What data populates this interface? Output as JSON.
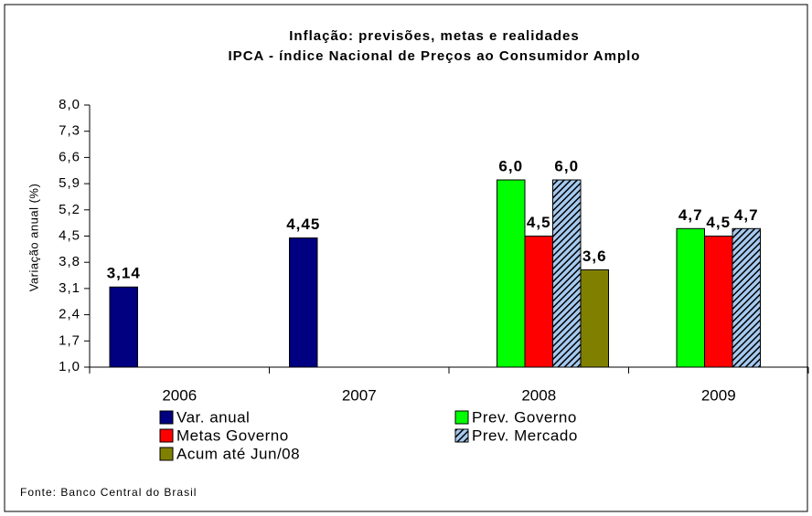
{
  "chart_data": {
    "type": "bar",
    "title": "Inflação: previsões, metas e realidades",
    "subtitle": "IPCA - índice Nacional de Preços ao Consumidor Amplo",
    "y_label": "Variação anual (%)",
    "source": "Fonte: Banco Central do Brasil",
    "categories": [
      "2006",
      "2007",
      "2008",
      "2009"
    ],
    "series": [
      {
        "name": "Var. anual",
        "color": "#000080",
        "values": [
          3.14,
          4.45,
          null,
          null
        ],
        "value_labels": [
          "3,14",
          "4,45",
          null,
          null
        ]
      },
      {
        "name": "Prev. Governo",
        "color": "#00ff00",
        "values": [
          null,
          null,
          6.0,
          4.7
        ],
        "value_labels": [
          null,
          null,
          "6,0",
          "4,7"
        ]
      },
      {
        "name": "Metas Governo",
        "color": "#ff0000",
        "values": [
          null,
          null,
          4.5,
          4.5
        ],
        "value_labels": [
          null,
          null,
          "4,5",
          "4,5"
        ]
      },
      {
        "name": "Prev. Mercado",
        "color": "#a6caf0",
        "pattern": "hatch",
        "values": [
          null,
          null,
          6.0,
          4.7
        ],
        "value_labels": [
          null,
          null,
          "6,0",
          "4,7"
        ]
      },
      {
        "name": "Acum até Jun/08",
        "color": "#808000",
        "values": [
          null,
          null,
          3.6,
          null
        ],
        "value_labels": [
          null,
          null,
          "3,6",
          null
        ]
      }
    ],
    "ylim": [
      1.0,
      8.0
    ],
    "yticks": [
      {
        "value": 1.0,
        "label": "1,0"
      },
      {
        "value": 1.7,
        "label": "1,7"
      },
      {
        "value": 2.4,
        "label": "2,4"
      },
      {
        "value": 3.1,
        "label": "3,1"
      },
      {
        "value": 3.8,
        "label": "3,8"
      },
      {
        "value": 4.5,
        "label": "4,5"
      },
      {
        "value": 5.2,
        "label": "5,2"
      },
      {
        "value": 5.9,
        "label": "5,9"
      },
      {
        "value": 6.6,
        "label": "6,6"
      },
      {
        "value": 7.3,
        "label": "7,3"
      },
      {
        "value": 8.0,
        "label": "8,0"
      }
    ],
    "grid": false
  }
}
